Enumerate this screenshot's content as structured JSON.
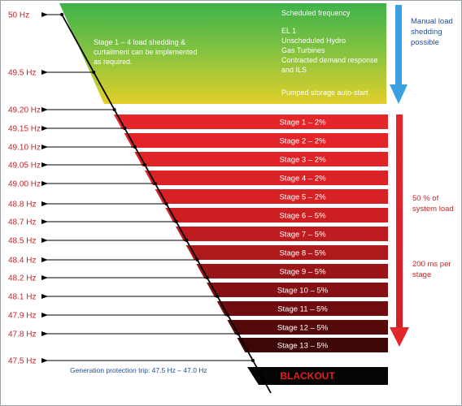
{
  "frequencies": [
    "50 Hz",
    "49.5 Hz",
    "49.20 Hz",
    "49.15 Hz",
    "49.10 Hz",
    "49.05 Hz",
    "49.00 Hz",
    "48.8 Hz",
    "48.7 Hz",
    "48.5 Hz",
    "48.4 Hz",
    "48.2 Hz",
    "48.1 Hz",
    "47.9 Hz",
    "47.8 Hz",
    "47.5 Hz"
  ],
  "stages": [
    "Stage 1 – 2%",
    "Stage 2 – 2%",
    "Stage 3 – 2%",
    "Stage 4 – 2%",
    "Stage 5 – 2%",
    "Stage 6 – 5%",
    "Stage 7 – 5%",
    "Stage 8 – 5%",
    "Stage 9 – 5%",
    "Stage 10 – 5%",
    "Stage 11 – 5%",
    "Stage 12 – 5%",
    "Stage 13 – 5%"
  ],
  "stage_colors": [
    "#e4252a",
    "#e22428",
    "#df2327",
    "#db2226",
    "#d72125",
    "#cd1f22",
    "#be1c20",
    "#ae191c",
    "#9a1518",
    "#861114",
    "#6f0d10",
    "#560a0b",
    "#3f0607"
  ],
  "green_zone": {
    "left_text": [
      "Stage 1 – 4 load shedding &",
      "curtailment can be implemented",
      "as required."
    ],
    "right_text": [
      "Scheduled frequency",
      "",
      "EL 1",
      "Unscheduled Hydro",
      "Gas Turbines",
      "Contracted demand response",
      "and ILS",
      "",
      "Pumped storage auto-start"
    ]
  },
  "manual_load": [
    "Manual load",
    "shedding",
    "possible"
  ],
  "system_load": [
    "50 % of",
    "system load"
  ],
  "per_stage": [
    "200 ms per",
    "stage"
  ],
  "generation_trip": "Generation protection trip:  47.5 Hz – 47.0 Hz",
  "blackout": "BLACKOUT",
  "colors": {
    "freq_label": "#c0282b",
    "blue_arrow": "#3aa0e0",
    "red_arrow": "#e3262c",
    "green_top": "#3fb24a",
    "yellow_bottom": "#e3cf2a"
  }
}
